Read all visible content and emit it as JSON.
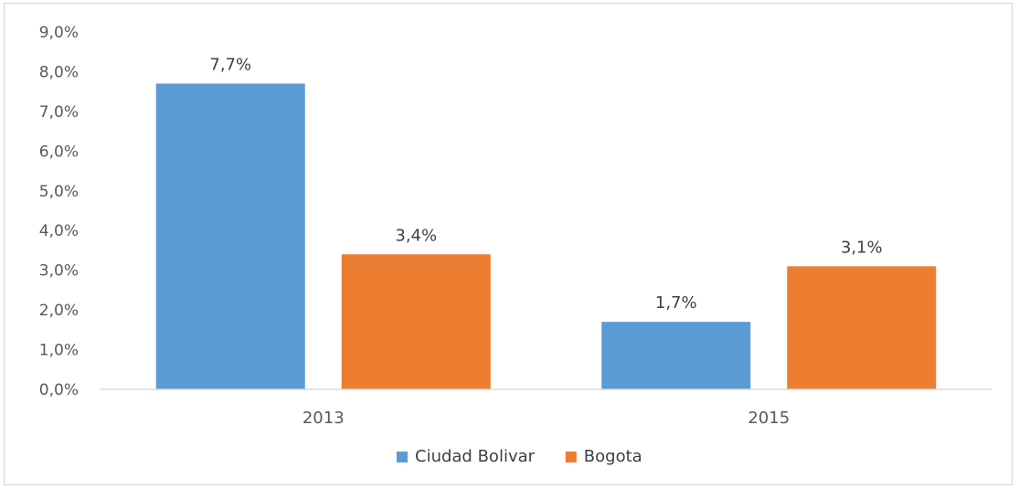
{
  "chart_data": {
    "type": "bar",
    "categories": [
      "2013",
      "2015"
    ],
    "series": [
      {
        "name": "Ciudad Bolivar",
        "values": [
          7.7,
          1.7
        ],
        "labels": [
          "7,7%",
          "1,7%"
        ],
        "color": "#5b9bd5"
      },
      {
        "name": "Bogota",
        "values": [
          3.4,
          3.1
        ],
        "labels": [
          "3,4%",
          "3,1%"
        ],
        "color": "#ed7d31"
      }
    ],
    "ylim": [
      0,
      9
    ],
    "y_ticks": [
      0,
      1,
      2,
      3,
      4,
      5,
      6,
      7,
      8,
      9
    ],
    "y_tick_labels": [
      "0,0%",
      "1,0%",
      "2,0%",
      "3,0%",
      "4,0%",
      "5,0%",
      "6,0%",
      "7,0%",
      "8,0%",
      "9,0%"
    ],
    "title": "",
    "xlabel": "",
    "ylabel": "",
    "grid": false,
    "legend_position": "bottom"
  }
}
